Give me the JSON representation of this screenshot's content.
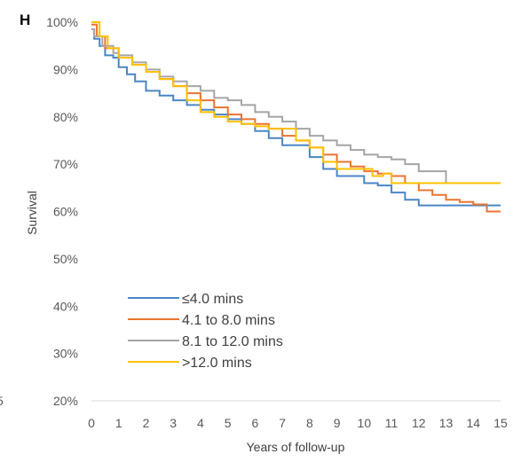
{
  "panel_letter": "H",
  "colors": {
    "le4": "#4A86C5",
    "4to8": "#E87530",
    "8to12": "#A5A5A5",
    "gt12": "#FFC000",
    "axis": "#D9D9D9",
    "text": "#595959"
  },
  "chart_data": {
    "type": "line",
    "step": true,
    "title": "",
    "xlabel": "Years of follow-up",
    "ylabel": "Survival",
    "xlim": [
      0,
      15
    ],
    "ylim": [
      20,
      100
    ],
    "x_ticks": [
      "0",
      "1",
      "2",
      "3",
      "4",
      "5",
      "6",
      "7",
      "8",
      "9",
      "10",
      "11",
      "12",
      "13",
      "14",
      "15"
    ],
    "y_ticks": [
      "20%",
      "30%",
      "40%",
      "50%",
      "60%",
      "70%",
      "80%",
      "90%",
      "100%"
    ],
    "stray_tick_label": "5",
    "grid": false,
    "legend": {
      "position": "bottom-left"
    },
    "series": [
      {
        "name": "≤4.0 mins",
        "color": "#4A86C5",
        "points": [
          [
            0,
            98.5
          ],
          [
            0.1,
            96.5
          ],
          [
            0.3,
            95
          ],
          [
            0.5,
            93
          ],
          [
            0.8,
            92.5
          ],
          [
            1,
            90.5
          ],
          [
            1.3,
            89
          ],
          [
            1.6,
            87.5
          ],
          [
            2,
            85.5
          ],
          [
            2.5,
            84.5
          ],
          [
            3,
            83.5
          ],
          [
            3.5,
            82.5
          ],
          [
            4,
            81.5
          ],
          [
            4.5,
            80.5
          ],
          [
            5,
            79.5
          ],
          [
            5.5,
            78.5
          ],
          [
            6,
            77
          ],
          [
            6.5,
            75.5
          ],
          [
            7,
            74
          ],
          [
            7.5,
            74
          ],
          [
            8,
            71.5
          ],
          [
            8.5,
            69
          ],
          [
            9,
            67.5
          ],
          [
            9.5,
            67.5
          ],
          [
            10,
            66
          ],
          [
            10.5,
            65.5
          ],
          [
            11,
            64
          ],
          [
            11.5,
            62.5
          ],
          [
            12,
            61.3
          ],
          [
            13,
            61.3
          ],
          [
            14,
            61.3
          ],
          [
            15,
            61.3
          ]
        ]
      },
      {
        "name": "4.1 to 8.0 mins",
        "color": "#E87530",
        "points": [
          [
            0,
            99.5
          ],
          [
            0.2,
            97
          ],
          [
            0.5,
            94.5
          ],
          [
            1,
            92.5
          ],
          [
            1.5,
            91
          ],
          [
            2,
            89.5
          ],
          [
            2.5,
            88
          ],
          [
            3,
            86.5
          ],
          [
            3.5,
            85
          ],
          [
            4,
            83.5
          ],
          [
            4.5,
            82
          ],
          [
            5,
            80.5
          ],
          [
            5.5,
            79.5
          ],
          [
            6,
            78.5
          ],
          [
            6.5,
            77.5
          ],
          [
            7,
            76
          ],
          [
            7.5,
            75
          ],
          [
            8,
            73.5
          ],
          [
            8.5,
            72
          ],
          [
            9,
            70.5
          ],
          [
            9.5,
            69.5
          ],
          [
            10,
            68.5
          ],
          [
            10.5,
            68
          ],
          [
            11,
            67.5
          ],
          [
            11.5,
            66
          ],
          [
            12,
            64.5
          ],
          [
            12.5,
            63.5
          ],
          [
            13,
            62.5
          ],
          [
            13.5,
            62
          ],
          [
            14,
            61.5
          ],
          [
            14.5,
            60
          ],
          [
            15,
            60
          ]
        ]
      },
      {
        "name": "8.1 to 12.0 mins",
        "color": "#A5A5A5",
        "points": [
          [
            0,
            98.5
          ],
          [
            0.1,
            97
          ],
          [
            0.4,
            95
          ],
          [
            0.8,
            93.5
          ],
          [
            1,
            93
          ],
          [
            1.5,
            91.5
          ],
          [
            2,
            90
          ],
          [
            2.5,
            88.5
          ],
          [
            3,
            87.5
          ],
          [
            3.5,
            86.5
          ],
          [
            4,
            85.5
          ],
          [
            4.5,
            84
          ],
          [
            5,
            83.5
          ],
          [
            5.5,
            82.5
          ],
          [
            6,
            81
          ],
          [
            6.5,
            80
          ],
          [
            7,
            79
          ],
          [
            7.5,
            77.5
          ],
          [
            8,
            76
          ],
          [
            8.5,
            75
          ],
          [
            9,
            74
          ],
          [
            9.5,
            73
          ],
          [
            10,
            72
          ],
          [
            10.5,
            71.5
          ],
          [
            11,
            71
          ],
          [
            11.5,
            70
          ],
          [
            12,
            68.5
          ],
          [
            12.5,
            68.5
          ],
          [
            12.9,
            68.5
          ],
          [
            13,
            66
          ],
          [
            15,
            66
          ]
        ]
      },
      {
        "name": ">12.0 mins",
        "color": "#FFC000",
        "points": [
          [
            0,
            100
          ],
          [
            0.3,
            97
          ],
          [
            0.6,
            94.5
          ],
          [
            1,
            92.5
          ],
          [
            1.5,
            91
          ],
          [
            2,
            89.5
          ],
          [
            2.5,
            88
          ],
          [
            3,
            86.5
          ],
          [
            3.5,
            83.5
          ],
          [
            4,
            81
          ],
          [
            4.5,
            80
          ],
          [
            5,
            79
          ],
          [
            5.5,
            78.5
          ],
          [
            6,
            78
          ],
          [
            6.5,
            77.5
          ],
          [
            7,
            77.5
          ],
          [
            7.5,
            75
          ],
          [
            8,
            73.5
          ],
          [
            8.5,
            70.5
          ],
          [
            9,
            69
          ],
          [
            10,
            69
          ],
          [
            10.3,
            67.5
          ],
          [
            10.7,
            68
          ],
          [
            11,
            66
          ],
          [
            12,
            66
          ],
          [
            15,
            66
          ]
        ]
      }
    ]
  }
}
